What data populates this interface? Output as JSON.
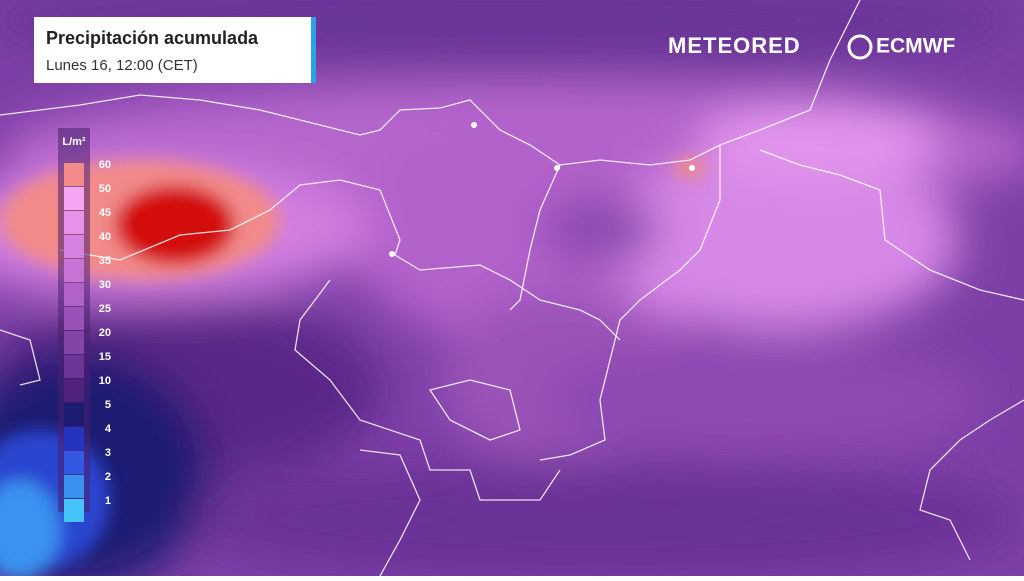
{
  "header": {
    "title": "Precipitación acumulada",
    "subtitle": "Lunes 16, 12:00 (CET)"
  },
  "brand": {
    "meteored": "METEORED",
    "ecmwf": "ECMWF"
  },
  "legend": {
    "unit": "L/m²",
    "items": [
      {
        "label": 60,
        "color": "#f28a8a"
      },
      {
        "label": 50,
        "color": "#f4a6f2"
      },
      {
        "label": 45,
        "color": "#e692ea"
      },
      {
        "label": 40,
        "color": "#d682e2"
      },
      {
        "label": 35,
        "color": "#c672d6"
      },
      {
        "label": 30,
        "color": "#b062c8"
      },
      {
        "label": 25,
        "color": "#9a52b8"
      },
      {
        "label": 20,
        "color": "#8444a8"
      },
      {
        "label": 15,
        "color": "#6c3496"
      },
      {
        "label": 10,
        "color": "#50227e"
      },
      {
        "label": 5,
        "color": "#1c1c72"
      },
      {
        "label": 4,
        "color": "#2434c0"
      },
      {
        "label": 3,
        "color": "#3558e2"
      },
      {
        "label": 2,
        "color": "#3a92f0"
      },
      {
        "label": 1,
        "color": "#44c4f8"
      }
    ]
  }
}
